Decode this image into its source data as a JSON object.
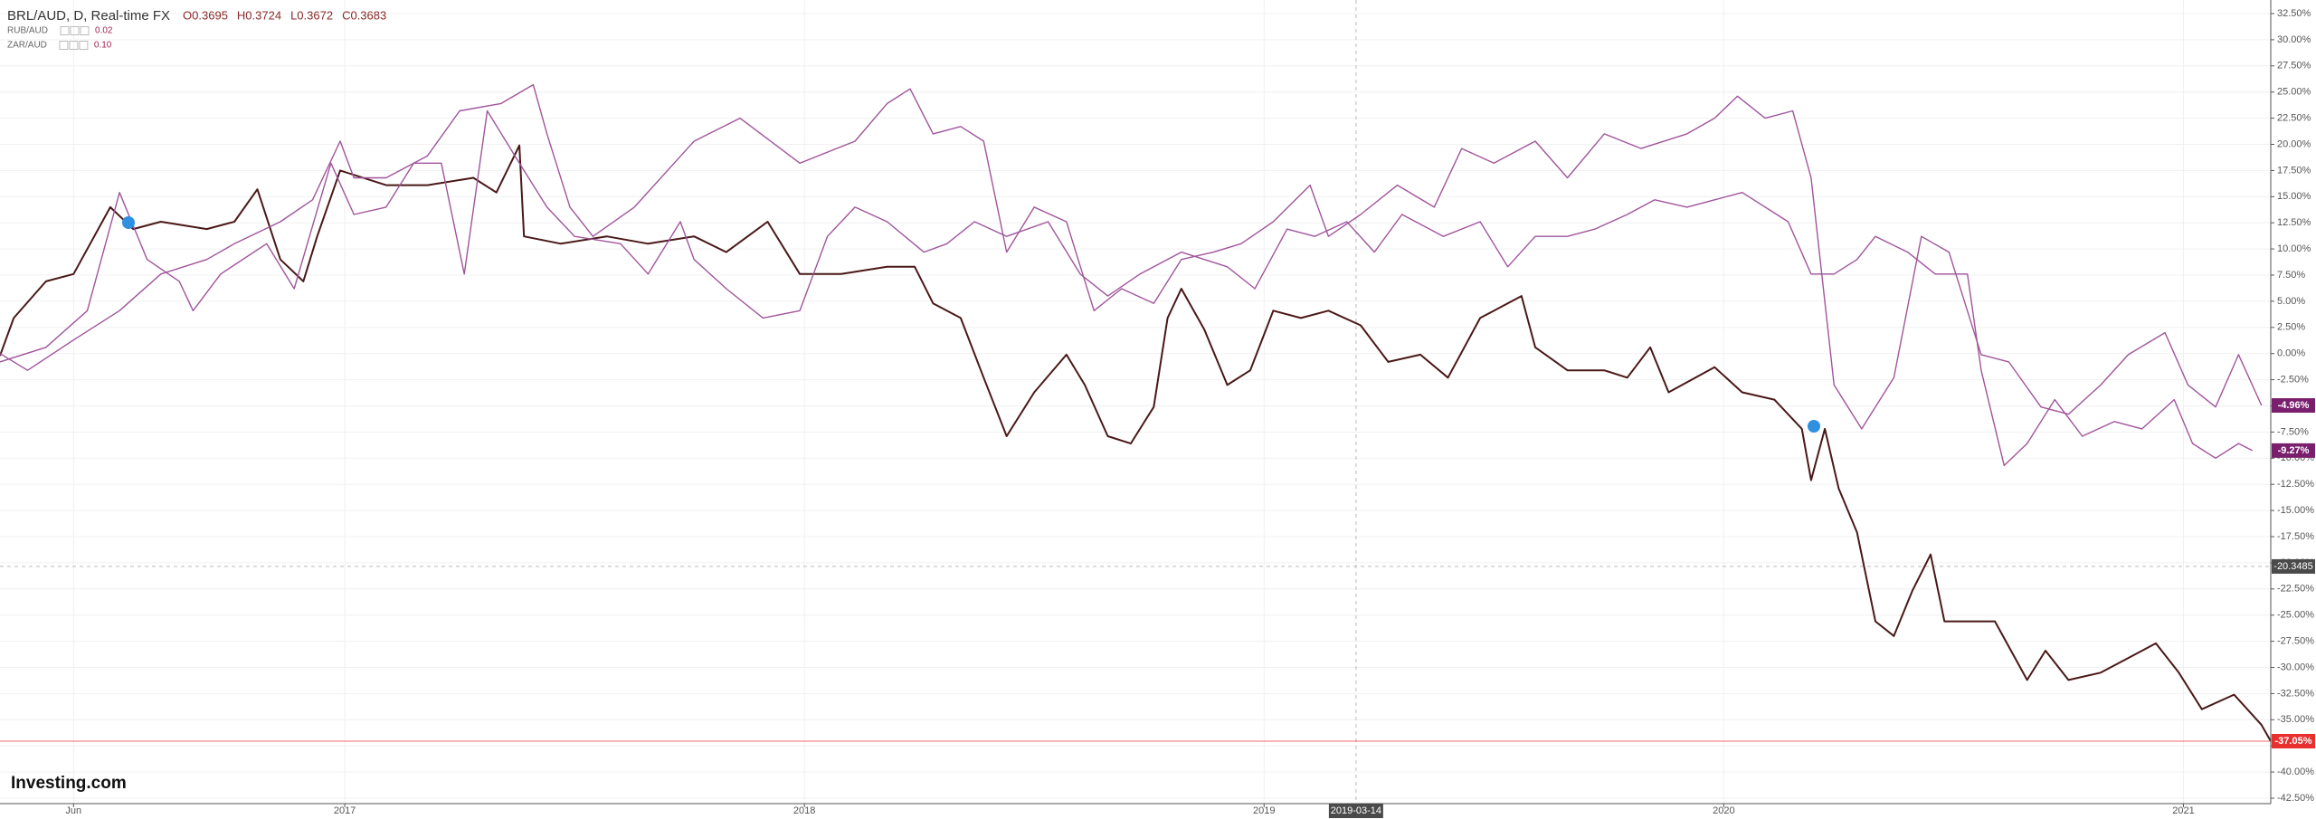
{
  "chart_data": {
    "type": "line",
    "header": "BRL/AUD, D, Real-time FX",
    "ohlc": [
      "O0.3695",
      "H0.3724",
      "L0.3672",
      "C0.3683"
    ],
    "logo": "Investing.com",
    "grid": true,
    "xlim": [
      2016.25,
      2021.19
    ],
    "ylim": [
      -42.5,
      32.5
    ],
    "xticks": [
      {
        "value": 2016.41,
        "label": "Jun"
      },
      2017,
      2018,
      2019,
      2020,
      2021
    ],
    "yticks": [
      {
        "value": 32.5,
        "label": "32.50%"
      },
      {
        "value": 30,
        "label": "30.00%"
      },
      {
        "value": 27.5,
        "label": "27.50%"
      },
      {
        "value": 25,
        "label": "25.00%"
      },
      {
        "value": 22.5,
        "label": "22.50%"
      },
      {
        "value": 20,
        "label": "20.00%"
      },
      {
        "value": 17.5,
        "label": "17.50%"
      },
      {
        "value": 15,
        "label": "15.00%"
      },
      {
        "value": 12.5,
        "label": "12.50%"
      },
      {
        "value": 10,
        "label": "10.00%"
      },
      {
        "value": 7.5,
        "label": "7.50%"
      },
      {
        "value": 5,
        "label": "5.00%"
      },
      {
        "value": 2.5,
        "label": "2.50%"
      },
      {
        "value": 0,
        "label": "0.00%"
      },
      {
        "value": -2.5,
        "label": "-2.50%"
      },
      {
        "value": -5,
        "label": "-5.00%"
      },
      {
        "value": -7.5,
        "label": "-7.50%"
      },
      {
        "value": -10,
        "label": "-10.00%"
      },
      {
        "value": -12.5,
        "label": "-12.50%"
      },
      {
        "value": -15,
        "label": "-15.00%"
      },
      {
        "value": -17.5,
        "label": "-17.50%"
      },
      {
        "value": -20,
        "label": "-20.00%"
      },
      {
        "value": -22.5,
        "label": "-22.50%"
      },
      {
        "value": -25,
        "label": "-25.00%"
      },
      {
        "value": -27.5,
        "label": "-27.50%"
      },
      {
        "value": -30,
        "label": "-30.00%"
      },
      {
        "value": -32.5,
        "label": "-32.50%"
      },
      {
        "value": -35,
        "label": "-35.00%"
      },
      {
        "value": -37.5,
        "label": "-37.50%"
      },
      {
        "value": -40,
        "label": "-40.00%"
      },
      {
        "value": -42.5,
        "label": "-42.50%"
      }
    ],
    "crosshair_x": {
      "value": 2019.2,
      "label": "2019-03-14"
    },
    "crosshair_y": {
      "value": -20.3485,
      "label": "-20.3485"
    },
    "series": [
      {
        "name": "BRL/AUD, D, Real-time FX",
        "color": "#4a1818",
        "tag_color": "#e8302f",
        "price_line": true,
        "last_label": "-37.05%",
        "x": [
          2016.25,
          2016.28,
          2016.35,
          2016.41,
          2016.49,
          2016.54,
          2016.6,
          2016.7,
          2016.76,
          2016.81,
          2016.86,
          2016.91,
          2016.94,
          2016.99,
          2017.09,
          2017.18,
          2017.28,
          2017.33,
          2017.38,
          2017.39,
          2017.47,
          2017.57,
          2017.66,
          2017.76,
          2017.83,
          2017.92,
          2017.99,
          2018.08,
          2018.18,
          2018.24,
          2018.28,
          2018.34,
          2018.39,
          2018.44,
          2018.5,
          2018.57,
          2018.61,
          2018.66,
          2018.71,
          2018.76,
          2018.79,
          2018.82,
          2018.87,
          2018.92,
          2018.97,
          2019.02,
          2019.08,
          2019.14,
          2019.21,
          2019.27,
          2019.34,
          2019.4,
          2019.47,
          2019.56,
          2019.59,
          2019.66,
          2019.74,
          2019.79,
          2019.84,
          2019.88,
          2019.98,
          2020.04,
          2020.11,
          2020.17,
          2020.19,
          2020.22,
          2020.25,
          2020.29,
          2020.33,
          2020.37,
          2020.41,
          2020.45,
          2020.48,
          2020.53,
          2020.59,
          2020.66,
          2020.7,
          2020.75,
          2020.82,
          2020.88,
          2020.94,
          2020.99,
          2021.04,
          2021.11,
          2021.17,
          2021.19
        ],
        "values": [
          -0.2,
          3.4,
          6.9,
          7.6,
          14,
          11.9,
          12.6,
          11.9,
          12.6,
          15.7,
          9,
          6.9,
          11.2,
          17.5,
          16.1,
          16.1,
          16.8,
          15.4,
          19.9,
          11.2,
          10.5,
          11.2,
          10.5,
          11.2,
          9.7,
          12.6,
          7.6,
          7.6,
          8.3,
          8.3,
          4.8,
          3.4,
          -2.3,
          -7.9,
          -3.7,
          -0.1,
          -3,
          -7.9,
          -8.6,
          -5.1,
          3.4,
          6.2,
          2.3,
          -3,
          -1.6,
          4.1,
          3.4,
          4.1,
          2.7,
          -0.8,
          -0.1,
          -2.3,
          3.4,
          5.5,
          0.6,
          -1.6,
          -1.6,
          -2.3,
          0.6,
          -3.7,
          -1.3,
          -3.7,
          -4.4,
          -7.2,
          -12.1,
          -7.2,
          -12.9,
          -17.1,
          -25.6,
          -27,
          -22.7,
          -19.2,
          -25.6,
          -25.6,
          -25.6,
          -31.2,
          -28.4,
          -31.2,
          -30.5,
          -29.1,
          -27.7,
          -30.5,
          -34,
          -32.6,
          -35.5,
          -37.05
        ]
      },
      {
        "name": "RUB/AUD",
        "legend_value": "0.02",
        "color": "#a0559b",
        "tag_color": "#7a1f6e",
        "last_label": "-4.96%",
        "x": [
          2016.25,
          2016.31,
          2016.41,
          2016.51,
          2016.6,
          2016.7,
          2016.76,
          2016.86,
          2016.93,
          2016.99,
          2017.02,
          2017.09,
          2017.18,
          2017.25,
          2017.34,
          2017.41,
          2017.44,
          2017.49,
          2017.54,
          2017.63,
          2017.76,
          2017.86,
          2017.99,
          2018.11,
          2018.18,
          2018.23,
          2018.28,
          2018.34,
          2018.39,
          2018.44,
          2018.5,
          2018.57,
          2018.63,
          2018.69,
          2018.76,
          2018.82,
          2018.89,
          2018.95,
          2019.02,
          2019.1,
          2019.14,
          2019.21,
          2019.29,
          2019.37,
          2019.43,
          2019.5,
          2019.59,
          2019.66,
          2019.74,
          2019.82,
          2019.92,
          2019.98,
          2020.03,
          2020.09,
          2020.15,
          2020.19,
          2020.24,
          2020.3,
          2020.37,
          2020.43,
          2020.49,
          2020.56,
          2020.62,
          2020.69,
          2020.75,
          2020.82,
          2020.88,
          2020.96,
          2021.01,
          2021.07,
          2021.12,
          2021.17
        ],
        "values": [
          0,
          -1.6,
          1.3,
          4.1,
          7.6,
          9,
          10.5,
          12.6,
          14.7,
          20.3,
          16.8,
          16.8,
          18.9,
          23.2,
          23.9,
          25.7,
          21,
          14,
          11.2,
          14,
          20.3,
          22.5,
          18.2,
          20.3,
          23.9,
          25.3,
          21,
          21.7,
          20.3,
          9.7,
          14,
          12.6,
          4.1,
          6.2,
          4.8,
          9,
          9.7,
          10.5,
          12.6,
          16.1,
          11.2,
          13.3,
          16.1,
          14,
          19.6,
          18.2,
          20.3,
          16.8,
          21,
          19.6,
          21,
          22.5,
          24.6,
          22.5,
          23.2,
          16.8,
          -3,
          -7.2,
          -2.3,
          11.2,
          9.7,
          -0.1,
          -0.8,
          -5.1,
          -5.8,
          -3,
          -0.1,
          2,
          -3,
          -5.1,
          -0.1,
          -4.96
        ]
      },
      {
        "name": "ZAR/AUD",
        "legend_value": "0.10",
        "color": "#a0559b",
        "tag_color": "#7a1f6e",
        "last_label": "-9.27%",
        "x": [
          2016.25,
          2016.35,
          2016.44,
          2016.51,
          2016.57,
          2016.64,
          2016.67,
          2016.73,
          2016.83,
          2016.89,
          2016.97,
          2017.02,
          2017.09,
          2017.15,
          2017.21,
          2017.26,
          2017.31,
          2017.38,
          2017.44,
          2017.5,
          2017.6,
          2017.66,
          2017.73,
          2017.76,
          2017.83,
          2017.91,
          2017.99,
          2018.05,
          2018.11,
          2018.18,
          2018.26,
          2018.31,
          2018.37,
          2018.44,
          2018.53,
          2018.6,
          2018.66,
          2018.73,
          2018.82,
          2018.92,
          2018.98,
          2019.05,
          2019.11,
          2019.18,
          2019.24,
          2019.3,
          2019.39,
          2019.47,
          2019.53,
          2019.59,
          2019.66,
          2019.72,
          2019.79,
          2019.85,
          2019.92,
          2019.98,
          2020.04,
          2020.14,
          2020.19,
          2020.24,
          2020.29,
          2020.33,
          2020.4,
          2020.46,
          2020.53,
          2020.56,
          2020.61,
          2020.66,
          2020.72,
          2020.78,
          2020.85,
          2020.91,
          2020.98,
          2021.02,
          2021.07,
          2021.12,
          2021.15
        ],
        "values": [
          -0.8,
          0.6,
          4.1,
          15.4,
          9,
          6.9,
          4.1,
          7.6,
          10.5,
          6.2,
          18.2,
          13.3,
          14,
          18.2,
          18.2,
          7.6,
          23.2,
          18.2,
          14,
          11.2,
          10.5,
          7.6,
          12.6,
          9,
          6.2,
          3.4,
          4.1,
          11.2,
          14,
          12.6,
          9.7,
          10.5,
          12.6,
          11.2,
          12.6,
          7.6,
          5.5,
          7.6,
          9.7,
          8.3,
          6.2,
          11.9,
          11.2,
          12.6,
          9.7,
          13.3,
          11.2,
          12.6,
          8.3,
          11.2,
          11.2,
          11.9,
          13.3,
          14.7,
          14,
          14.7,
          15.4,
          12.6,
          7.6,
          7.6,
          9,
          11.2,
          9.7,
          7.6,
          7.6,
          -1.6,
          -10.7,
          -8.6,
          -4.4,
          -7.9,
          -6.5,
          -7.2,
          -4.4,
          -8.6,
          -10,
          -8.6,
          -9.27
        ]
      }
    ]
  }
}
